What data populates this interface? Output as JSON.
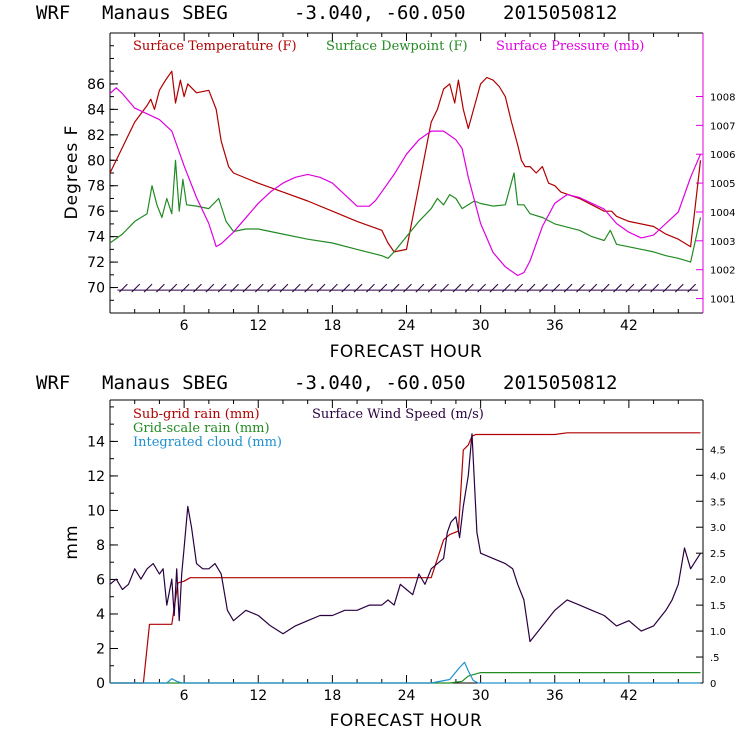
{
  "chart_data": [
    {
      "type": "line",
      "header": {
        "model": "WRF",
        "station": "Manaus SBEG",
        "coords": "-3.040, -60.050",
        "date": "2015050812"
      },
      "xlabel": "FORECAST HOUR",
      "ylabel": "Degrees F",
      "xlim": [
        0,
        48
      ],
      "ylim": [
        68,
        90
      ],
      "y2lim": [
        1000.5,
        1010.2
      ],
      "x_ticks": [
        6,
        12,
        18,
        24,
        30,
        36,
        42
      ],
      "y_ticks": [
        70,
        72,
        74,
        76,
        78,
        80,
        82,
        84,
        86
      ],
      "y2_ticks": [
        1001,
        1002,
        1003,
        1004,
        1005,
        1006,
        1007,
        1008
      ],
      "legend": [
        "Surface Temperature (F)",
        "Surface Dewpoint (F)",
        "Surface Pressure (mb)"
      ],
      "colors": {
        "temp": "#b00000",
        "dew": "#228b22",
        "pres": "#e000e0",
        "wind": "#2a0040"
      },
      "series": [
        {
          "name": "Surface Temperature (F)",
          "axis": "left",
          "x": [
            0,
            1,
            2,
            3,
            3.3,
            3.6,
            4,
            4.5,
            5,
            5.3,
            5.7,
            6,
            6.3,
            7,
            8,
            8.6,
            9,
            9.6,
            10,
            12,
            14,
            16,
            18,
            20,
            22,
            22.5,
            23,
            24,
            25,
            26,
            26.5,
            27,
            27.5,
            27.9,
            28.2,
            28.6,
            29,
            30,
            30.5,
            31,
            31.5,
            32,
            32.5,
            33,
            33.3,
            33.6,
            34,
            34.5,
            35,
            35.5,
            36,
            36.5,
            38,
            39,
            40,
            40.6,
            41,
            42,
            44,
            45,
            46,
            47,
            47.8
          ],
          "values": [
            79,
            81,
            83,
            84.3,
            84.8,
            84,
            85.5,
            86.3,
            87,
            84.5,
            86.3,
            85,
            86,
            85.3,
            85.5,
            84,
            81.5,
            79.5,
            79,
            78.2,
            77.5,
            76.8,
            76,
            75.2,
            74.5,
            73.5,
            72.8,
            73,
            78,
            83,
            84,
            85.6,
            86,
            84.5,
            86.3,
            84,
            82.5,
            86,
            86.5,
            86.3,
            85.8,
            85,
            83,
            81.2,
            80,
            79.5,
            79.5,
            79,
            79.5,
            78.2,
            78,
            77.5,
            77,
            76.5,
            76,
            76,
            75.6,
            75.2,
            74.8,
            74.2,
            73.8,
            73.2,
            80
          ]
        },
        {
          "name": "Surface Dewpoint (F)",
          "axis": "left",
          "x": [
            0,
            1,
            2,
            3,
            3.4,
            3.8,
            4.2,
            4.6,
            5,
            5.3,
            5.6,
            5.9,
            6.2,
            7,
            8,
            8.8,
            9.4,
            10,
            11,
            12,
            14,
            16,
            18,
            20,
            22,
            22.5,
            23,
            24,
            25,
            26,
            26.5,
            27,
            27.5,
            28,
            28.5,
            29,
            29.5,
            30,
            31,
            32,
            32.7,
            33,
            33.5,
            34,
            35,
            36,
            38,
            39,
            40,
            40.5,
            41,
            42,
            44,
            45,
            46,
            47,
            47.8
          ],
          "values": [
            73.5,
            74.2,
            75.2,
            75.8,
            78,
            76.5,
            75.5,
            77,
            75.8,
            80,
            76,
            78.5,
            76.5,
            76.4,
            76.2,
            77,
            75.2,
            74.4,
            74.6,
            74.6,
            74.2,
            73.8,
            73.5,
            73,
            72.5,
            72.3,
            72.8,
            74,
            75.2,
            76.2,
            77,
            76.5,
            77.3,
            77,
            76.2,
            76.5,
            76.8,
            76.6,
            76.4,
            76.5,
            79,
            76.5,
            76.5,
            75.8,
            75.5,
            75,
            74.5,
            74,
            73.7,
            74.5,
            73.4,
            73.2,
            72.8,
            72.5,
            72.3,
            72,
            75.5
          ]
        },
        {
          "name": "Surface Pressure (mb)",
          "axis": "right",
          "x": [
            0,
            0.5,
            1,
            2,
            3,
            4,
            5,
            6,
            7,
            8,
            8.6,
            9,
            9.5,
            10,
            11,
            12,
            13,
            14,
            15,
            16,
            17,
            18,
            19,
            20,
            21,
            21.5,
            22,
            23,
            24,
            25,
            26,
            27,
            28,
            28.5,
            29,
            30,
            31,
            32,
            33,
            33.5,
            34,
            35,
            36,
            37,
            38,
            39,
            40,
            41,
            42,
            43,
            44,
            45,
            46,
            47,
            47.8
          ],
          "values": [
            1008.1,
            1008.3,
            1008.1,
            1007.6,
            1007.4,
            1007.2,
            1006.8,
            1005.6,
            1004.5,
            1003.6,
            1002.8,
            1002.9,
            1003.1,
            1003.3,
            1003.8,
            1004.3,
            1004.7,
            1005,
            1005.2,
            1005.3,
            1005.2,
            1005,
            1004.6,
            1004.2,
            1004.2,
            1004.4,
            1004.7,
            1005.3,
            1006,
            1006.5,
            1006.8,
            1006.8,
            1006.5,
            1006.2,
            1005.2,
            1003.6,
            1002.6,
            1002.1,
            1001.8,
            1001.9,
            1002.3,
            1003.5,
            1004.3,
            1004.6,
            1004.5,
            1004.3,
            1004.1,
            1003.6,
            1003.3,
            1003.1,
            1003.2,
            1003.6,
            1004,
            1005.2,
            1006
          ]
        }
      ],
      "wind_barbs": {
        "y_level": 69.8,
        "x": [
          1,
          2,
          3,
          4,
          5,
          6,
          7,
          8,
          9,
          10,
          11,
          12,
          13,
          14,
          15,
          16,
          17,
          18,
          19,
          20,
          21,
          22,
          23,
          24,
          25,
          26,
          27,
          28,
          29,
          30,
          31,
          32,
          33,
          34,
          35,
          36,
          37,
          38,
          39,
          40,
          41,
          42,
          43,
          44,
          45,
          46,
          47
        ]
      }
    },
    {
      "type": "line",
      "header": {
        "model": "WRF",
        "station": "Manaus SBEG",
        "coords": "-3.040, -60.050",
        "date": "2015050812"
      },
      "xlabel": "FORECAST HOUR",
      "ylabel": "mm",
      "xlim": [
        0,
        48
      ],
      "ylim": [
        0,
        16.4
      ],
      "y2lim": [
        0,
        5.45
      ],
      "x_ticks": [
        6,
        12,
        18,
        24,
        30,
        36,
        42
      ],
      "y_ticks": [
        0,
        2,
        4,
        6,
        8,
        10,
        12,
        14
      ],
      "y2_ticks": [
        "0",
        ".5",
        "1.0",
        "1.5",
        "2.0",
        "2.5",
        "3.0",
        "3.5",
        "4.0",
        "4.5"
      ],
      "y2_tick_values": [
        0,
        0.5,
        1,
        1.5,
        2,
        2.5,
        3,
        3.5,
        4,
        4.5
      ],
      "legend": [
        "Sub-grid rain (mm)",
        "Grid-scale rain (mm)",
        "Integrated cloud (mm)",
        "Surface Wind Speed (m/s)"
      ],
      "colors": {
        "subgrid": "#b00000",
        "grid": "#228b22",
        "cloud": "#1e90d0",
        "wind": "#2a0040"
      },
      "series": [
        {
          "name": "Sub-grid rain (mm)",
          "axis": "left",
          "x": [
            0,
            2.7,
            3.2,
            4.5,
            5,
            5.5,
            6,
            6.5,
            8,
            26,
            27,
            27.5,
            28.2,
            28.6,
            29,
            29.3,
            29.6,
            36,
            37,
            47.8
          ],
          "values": [
            0,
            0,
            3.4,
            3.4,
            3.4,
            5.8,
            5.9,
            6.1,
            6.1,
            6.1,
            8.3,
            8.6,
            8.8,
            13.5,
            13.8,
            14.3,
            14.4,
            14.4,
            14.5,
            14.5
          ]
        },
        {
          "name": "Grid-scale rain (mm)",
          "axis": "left",
          "x": [
            0,
            27.5,
            28.5,
            29,
            30,
            47.8
          ],
          "values": [
            0,
            0,
            0.1,
            0.4,
            0.6,
            0.6
          ]
        },
        {
          "name": "Integrated cloud (mm)",
          "axis": "left",
          "x": [
            0,
            4.6,
            5,
            5.4,
            5.8,
            26,
            27.5,
            28.3,
            28.7,
            29,
            29.4,
            29.8,
            47.8
          ],
          "values": [
            0,
            0,
            0.25,
            0.1,
            0,
            0,
            0.2,
            0.9,
            1.2,
            0.7,
            0.15,
            0,
            0
          ]
        },
        {
          "name": "Surface Wind Speed (m/s)",
          "axis": "right",
          "x": [
            0,
            0.5,
            1,
            1.5,
            2,
            2.5,
            3,
            3.5,
            4,
            4.3,
            4.6,
            5,
            5.2,
            5.4,
            5.6,
            5.8,
            6,
            6.3,
            6.6,
            7,
            7.5,
            8,
            8.5,
            9,
            9.5,
            10,
            11,
            12,
            13,
            14,
            15,
            16,
            17,
            18,
            19,
            20,
            21,
            22,
            22.5,
            23,
            23.5,
            24,
            24.5,
            25,
            25.5,
            26,
            26.5,
            27,
            27.3,
            27.6,
            28,
            28.3,
            28.6,
            29,
            29.3,
            29.7,
            30,
            31,
            32,
            32.6,
            33,
            33.5,
            34,
            35,
            36,
            37,
            38,
            39,
            40,
            41,
            42,
            43,
            44,
            45,
            45.5,
            46,
            46.5,
            47,
            47.8
          ],
          "values": [
            1.9,
            2.0,
            1.8,
            1.9,
            2.2,
            2.0,
            2.2,
            2.3,
            2.1,
            2.2,
            1.5,
            2.0,
            1.3,
            2.2,
            1.2,
            2.1,
            2.6,
            3.4,
            3.0,
            2.3,
            2.2,
            2.2,
            2.3,
            2.1,
            1.4,
            1.2,
            1.4,
            1.3,
            1.1,
            0.95,
            1.1,
            1.2,
            1.3,
            1.3,
            1.4,
            1.4,
            1.5,
            1.5,
            1.6,
            1.5,
            1.9,
            1.8,
            1.7,
            2.1,
            1.9,
            2.2,
            2.3,
            2.4,
            2.9,
            3.1,
            3.2,
            2.8,
            3.4,
            4.0,
            4.8,
            2.9,
            2.5,
            2.4,
            2.3,
            2.2,
            1.9,
            1.6,
            0.8,
            1.1,
            1.4,
            1.6,
            1.5,
            1.4,
            1.3,
            1.1,
            1.2,
            1.0,
            1.1,
            1.4,
            1.6,
            1.9,
            2.6,
            2.2,
            2.5
          ]
        }
      ]
    }
  ]
}
